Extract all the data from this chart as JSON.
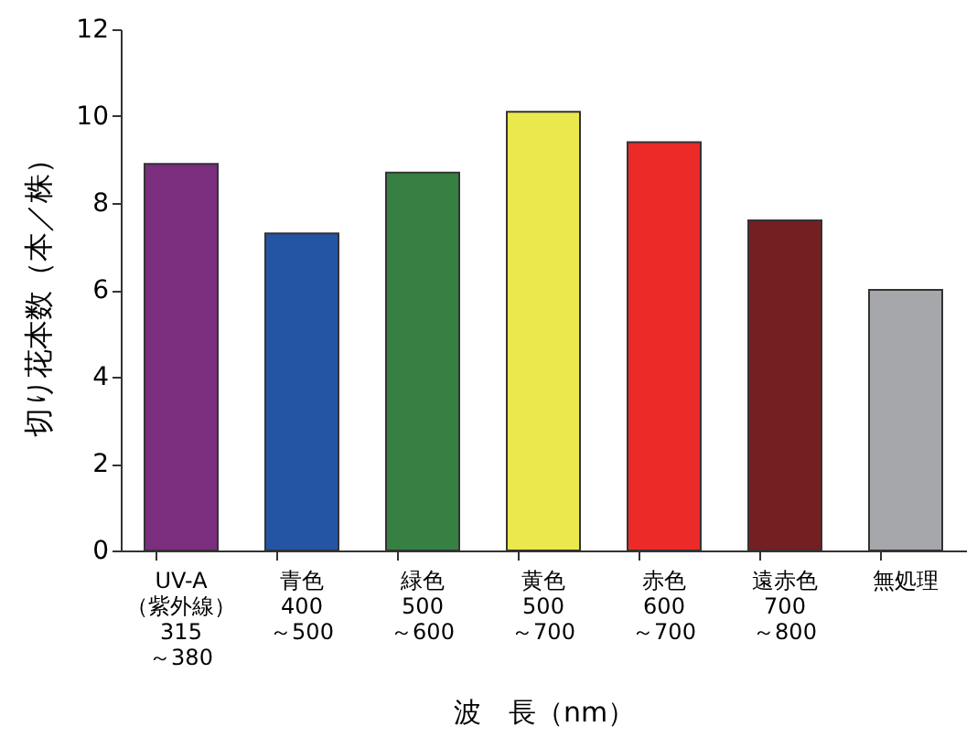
{
  "chart_data": {
    "type": "bar",
    "xlabel": "波　長（nm）",
    "ylabel": "切り花本数（本／株）",
    "categories": [
      "UV-A\n（紫外線）\n\n315\n～380",
      "青色\n\n\n400\n～500",
      "緑色\n\n\n500\n～600",
      "黄色\n\n\n500\n～700",
      "赤色\n\n\n600\n～700",
      "遠赤色\n\n\n700\n～800",
      "無処理"
    ],
    "values": [
      8.9,
      7.3,
      8.7,
      10.1,
      9.4,
      7.6,
      6.0
    ],
    "colors": [
      "#7b2d7e",
      "#2455a4",
      "#378043",
      "#ebe84d",
      "#ec2a28",
      "#741f22",
      "#a6a7aa"
    ],
    "ylim": [
      0,
      12
    ],
    "yticks": [
      0,
      2,
      4,
      6,
      8,
      10,
      12
    ]
  }
}
